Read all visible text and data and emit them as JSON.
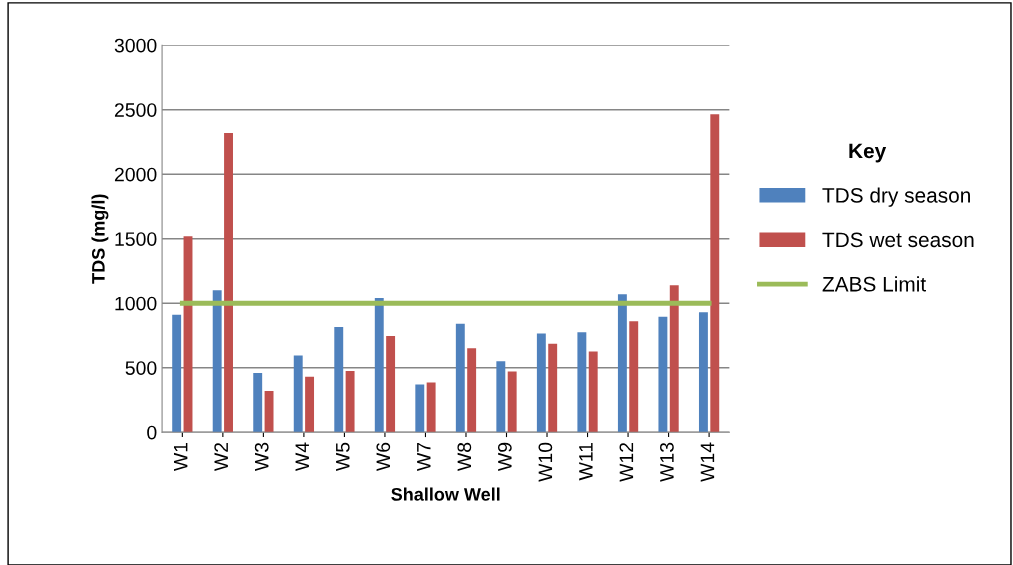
{
  "chart_data": {
    "type": "bar",
    "xlabel": "Shallow Well",
    "ylabel": "TDS (mg/l)",
    "legend_title": "Key",
    "categories": [
      "W1",
      "W2",
      "W3",
      "W4",
      "W5",
      "W6",
      "W7",
      "W8",
      "W9",
      "W10",
      "W11",
      "W12",
      "W13",
      "W14"
    ],
    "series": [
      {
        "name": "TDS dry season",
        "color": "#4f81bd",
        "values": [
          910,
          1100,
          460,
          595,
          815,
          1040,
          370,
          840,
          550,
          765,
          775,
          1070,
          895,
          930
        ]
      },
      {
        "name": "TDS wet season",
        "color": "#c0504d",
        "values": [
          1520,
          2320,
          320,
          430,
          475,
          745,
          385,
          650,
          470,
          685,
          625,
          860,
          1140,
          2465
        ]
      },
      {
        "name": "ZABS Limit",
        "type": "line",
        "color": "#9bbb59",
        "values": [
          1000,
          1000,
          1000,
          1000,
          1000,
          1000,
          1000,
          1000,
          1000,
          1000,
          1000,
          1000,
          1000,
          1000
        ]
      }
    ],
    "ylim": [
      0,
      3000
    ],
    "yticks": [
      0,
      500,
      1000,
      1500,
      2000,
      2500,
      3000
    ],
    "grid": "y",
    "legend": "right",
    "marker": "none",
    "line_style": "solid"
  }
}
